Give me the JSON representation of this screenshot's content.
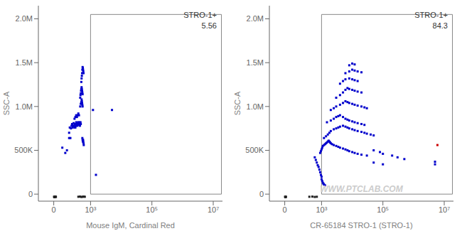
{
  "chart_data": [
    {
      "type": "scatter",
      "xlabel": "Mouse IgM, Cardinal Red",
      "ylabel": "SSC-A",
      "annotations": [
        "STRO-1+\n5.56"
      ],
      "xlim": [
        -200,
        20000000
      ],
      "ylim": [
        -80000,
        2150000
      ],
      "xticks": [
        0,
        {
          "value": 1000,
          "label": "10³"
        },
        {
          "value": 100000,
          "label": "10⁵"
        },
        {
          "value": 10000000,
          "label": "10⁷"
        }
      ],
      "yticks": [
        0,
        {
          "value": 500000,
          "label": "500K"
        },
        {
          "value": 1000000,
          "label": "1.0M"
        },
        {
          "value": 1500000,
          "label": "1.5M"
        },
        {
          "value": 2000000,
          "label": "2.0M"
        }
      ],
      "grid": false,
      "gate": {
        "x": [
          1000,
          18500000
        ],
        "y": [
          0,
          2050000
        ],
        "color": "#888888"
      },
      "series": [
        {
          "color": "#0000CC",
          "marker": "square",
          "x": [
            120,
            150,
            170,
            200,
            200,
            210,
            220,
            230,
            240,
            250,
            260,
            270,
            280,
            290,
            300,
            310,
            320,
            330,
            340,
            350,
            360,
            370,
            380,
            390,
            400,
            410,
            420,
            430,
            440,
            450,
            460,
            470,
            480,
            300,
            320,
            340,
            360,
            380,
            400,
            420,
            460,
            480,
            500,
            510,
            520,
            530,
            540,
            550,
            460,
            470,
            480,
            490,
            500,
            510,
            520,
            530,
            540,
            550,
            500,
            510,
            520,
            530,
            540,
            550,
            560,
            570,
            580,
            590,
            540,
            550,
            560,
            570,
            580,
            590,
            600,
            1200,
            5000,
            1500
          ],
          "values": [
            530000,
            470000,
            500000,
            640000,
            700000,
            760000,
            640000,
            750000,
            780000,
            800000,
            760000,
            780000,
            810000,
            780000,
            760000,
            800000,
            760000,
            780000,
            820000,
            790000,
            800000,
            780000,
            800000,
            820000,
            810000,
            790000,
            800000,
            820000,
            810000,
            780000,
            800000,
            820000,
            800000,
            860000,
            880000,
            900000,
            880000,
            900000,
            920000,
            900000,
            1000000,
            1030000,
            1050000,
            1080000,
            1060000,
            1040000,
            1020000,
            1000000,
            1100000,
            1130000,
            1150000,
            1180000,
            1200000,
            1220000,
            1200000,
            1180000,
            1160000,
            1140000,
            1280000,
            1320000,
            1350000,
            1380000,
            1420000,
            1450000,
            1440000,
            1420000,
            1400000,
            1380000,
            640000,
            620000,
            600000,
            620000,
            600000,
            580000,
            560000,
            960000,
            960000,
            220000
          ]
        },
        {
          "color": "#222222",
          "marker": "square",
          "x": [
            5,
            10,
            15,
            20,
            25,
            30,
            35,
            400,
            450,
            500,
            550,
            600,
            650
          ],
          "values": [
            -30000,
            -35000,
            -28000,
            -32000,
            -30000,
            -28000,
            -32000,
            -30000,
            -28000,
            -32000,
            -30000,
            -28000,
            -30000
          ]
        }
      ]
    },
    {
      "type": "scatter",
      "xlabel": "CR-65184 STRO-1 (STRO-1)",
      "ylabel": "SSC-A",
      "annotations": [
        "STRO-1+\n84.3",
        "WWW.PTCLAB.COM"
      ],
      "xlim": [
        -200,
        20000000
      ],
      "ylim": [
        -80000,
        2150000
      ],
      "xticks": [
        0,
        {
          "value": 1000,
          "label": "10³"
        },
        {
          "value": 100000,
          "label": "10⁵"
        },
        {
          "value": 10000000,
          "label": "10⁷"
        }
      ],
      "yticks": [
        0,
        {
          "value": 500000,
          "label": "500K"
        },
        {
          "value": 1000000,
          "label": "1.0M"
        },
        {
          "value": 1500000,
          "label": "1.5M"
        },
        {
          "value": 2000000,
          "label": "2.0M"
        }
      ],
      "grid": false,
      "gate": {
        "x": [
          1000,
          18500000
        ],
        "y": [
          0,
          2050000
        ],
        "color": "#888888"
      },
      "series": [
        {
          "color": "#0000CC",
          "marker": "square",
          "x": [
            600,
            650,
            700,
            750,
            800,
            850,
            900,
            950,
            1000,
            1000,
            1050,
            1100,
            1150,
            1200,
            1300,
            900,
            950,
            1000,
            1050,
            1100,
            1200,
            1300,
            1400,
            1500,
            1600,
            1700,
            1800,
            1900,
            2000,
            2200,
            2500,
            3000,
            3500,
            4000,
            5000,
            6000,
            7000,
            8000,
            10000,
            12000,
            15000,
            20000,
            30000,
            1200,
            1400,
            1600,
            1800,
            2000,
            2500,
            3000,
            3500,
            4000,
            5000,
            6000,
            7000,
            8000,
            10000,
            12000,
            15000,
            20000,
            25000,
            30000,
            40000,
            50000,
            1500,
            2000,
            2500,
            3000,
            3500,
            4000,
            5000,
            6000,
            7000,
            8000,
            10000,
            12000,
            15000,
            20000,
            25000,
            2000,
            2500,
            3000,
            4000,
            5000,
            6000,
            7000,
            8000,
            10000,
            12000,
            15000,
            20000,
            25000,
            30000,
            3000,
            4000,
            5000,
            6000,
            7000,
            8000,
            10000,
            12000,
            15000,
            20000,
            4000,
            5000,
            6000,
            8000,
            10000,
            12000,
            15000,
            6000,
            8000,
            10000,
            12000,
            15000,
            20000,
            8000,
            10000,
            12000,
            50000,
            80000,
            100000,
            200000,
            300000,
            500000,
            50000,
            100000,
            5000000,
            5000000
          ],
          "values": [
            420000,
            390000,
            360000,
            330000,
            310000,
            280000,
            250000,
            220000,
            200000,
            170000,
            150000,
            130000,
            120000,
            110000,
            100000,
            470000,
            490000,
            510000,
            530000,
            550000,
            560000,
            570000,
            580000,
            590000,
            600000,
            610000,
            600000,
            590000,
            580000,
            570000,
            560000,
            550000,
            540000,
            530000,
            520000,
            510000,
            500000,
            490000,
            480000,
            470000,
            460000,
            450000,
            440000,
            640000,
            660000,
            680000,
            700000,
            720000,
            740000,
            750000,
            760000,
            770000,
            780000,
            770000,
            760000,
            750000,
            740000,
            730000,
            720000,
            710000,
            700000,
            690000,
            680000,
            670000,
            820000,
            840000,
            860000,
            880000,
            890000,
            900000,
            880000,
            860000,
            850000,
            840000,
            830000,
            820000,
            810000,
            800000,
            790000,
            960000,
            980000,
            1000000,
            1020000,
            1040000,
            1060000,
            1050000,
            1040000,
            1030000,
            1020000,
            1010000,
            1000000,
            990000,
            980000,
            1100000,
            1130000,
            1160000,
            1190000,
            1210000,
            1200000,
            1190000,
            1180000,
            1170000,
            1160000,
            1260000,
            1290000,
            1310000,
            1320000,
            1310000,
            1300000,
            1290000,
            1380000,
            1400000,
            1420000,
            1410000,
            1400000,
            1390000,
            1470000,
            1490000,
            1480000,
            500000,
            480000,
            460000,
            440000,
            420000,
            400000,
            360000,
            340000,
            370000,
            340000
          ]
        },
        {
          "color": "#CC0000",
          "marker": "square",
          "x": [
            6000000
          ],
          "values": [
            560000
          ]
        },
        {
          "color": "#222222",
          "marker": "square",
          "x": [
            5,
            10,
            15,
            20,
            400,
            500,
            600,
            700
          ],
          "values": [
            -30000,
            -35000,
            -28000,
            -32000,
            -30000,
            -28000,
            -32000,
            -30000
          ]
        }
      ]
    }
  ]
}
